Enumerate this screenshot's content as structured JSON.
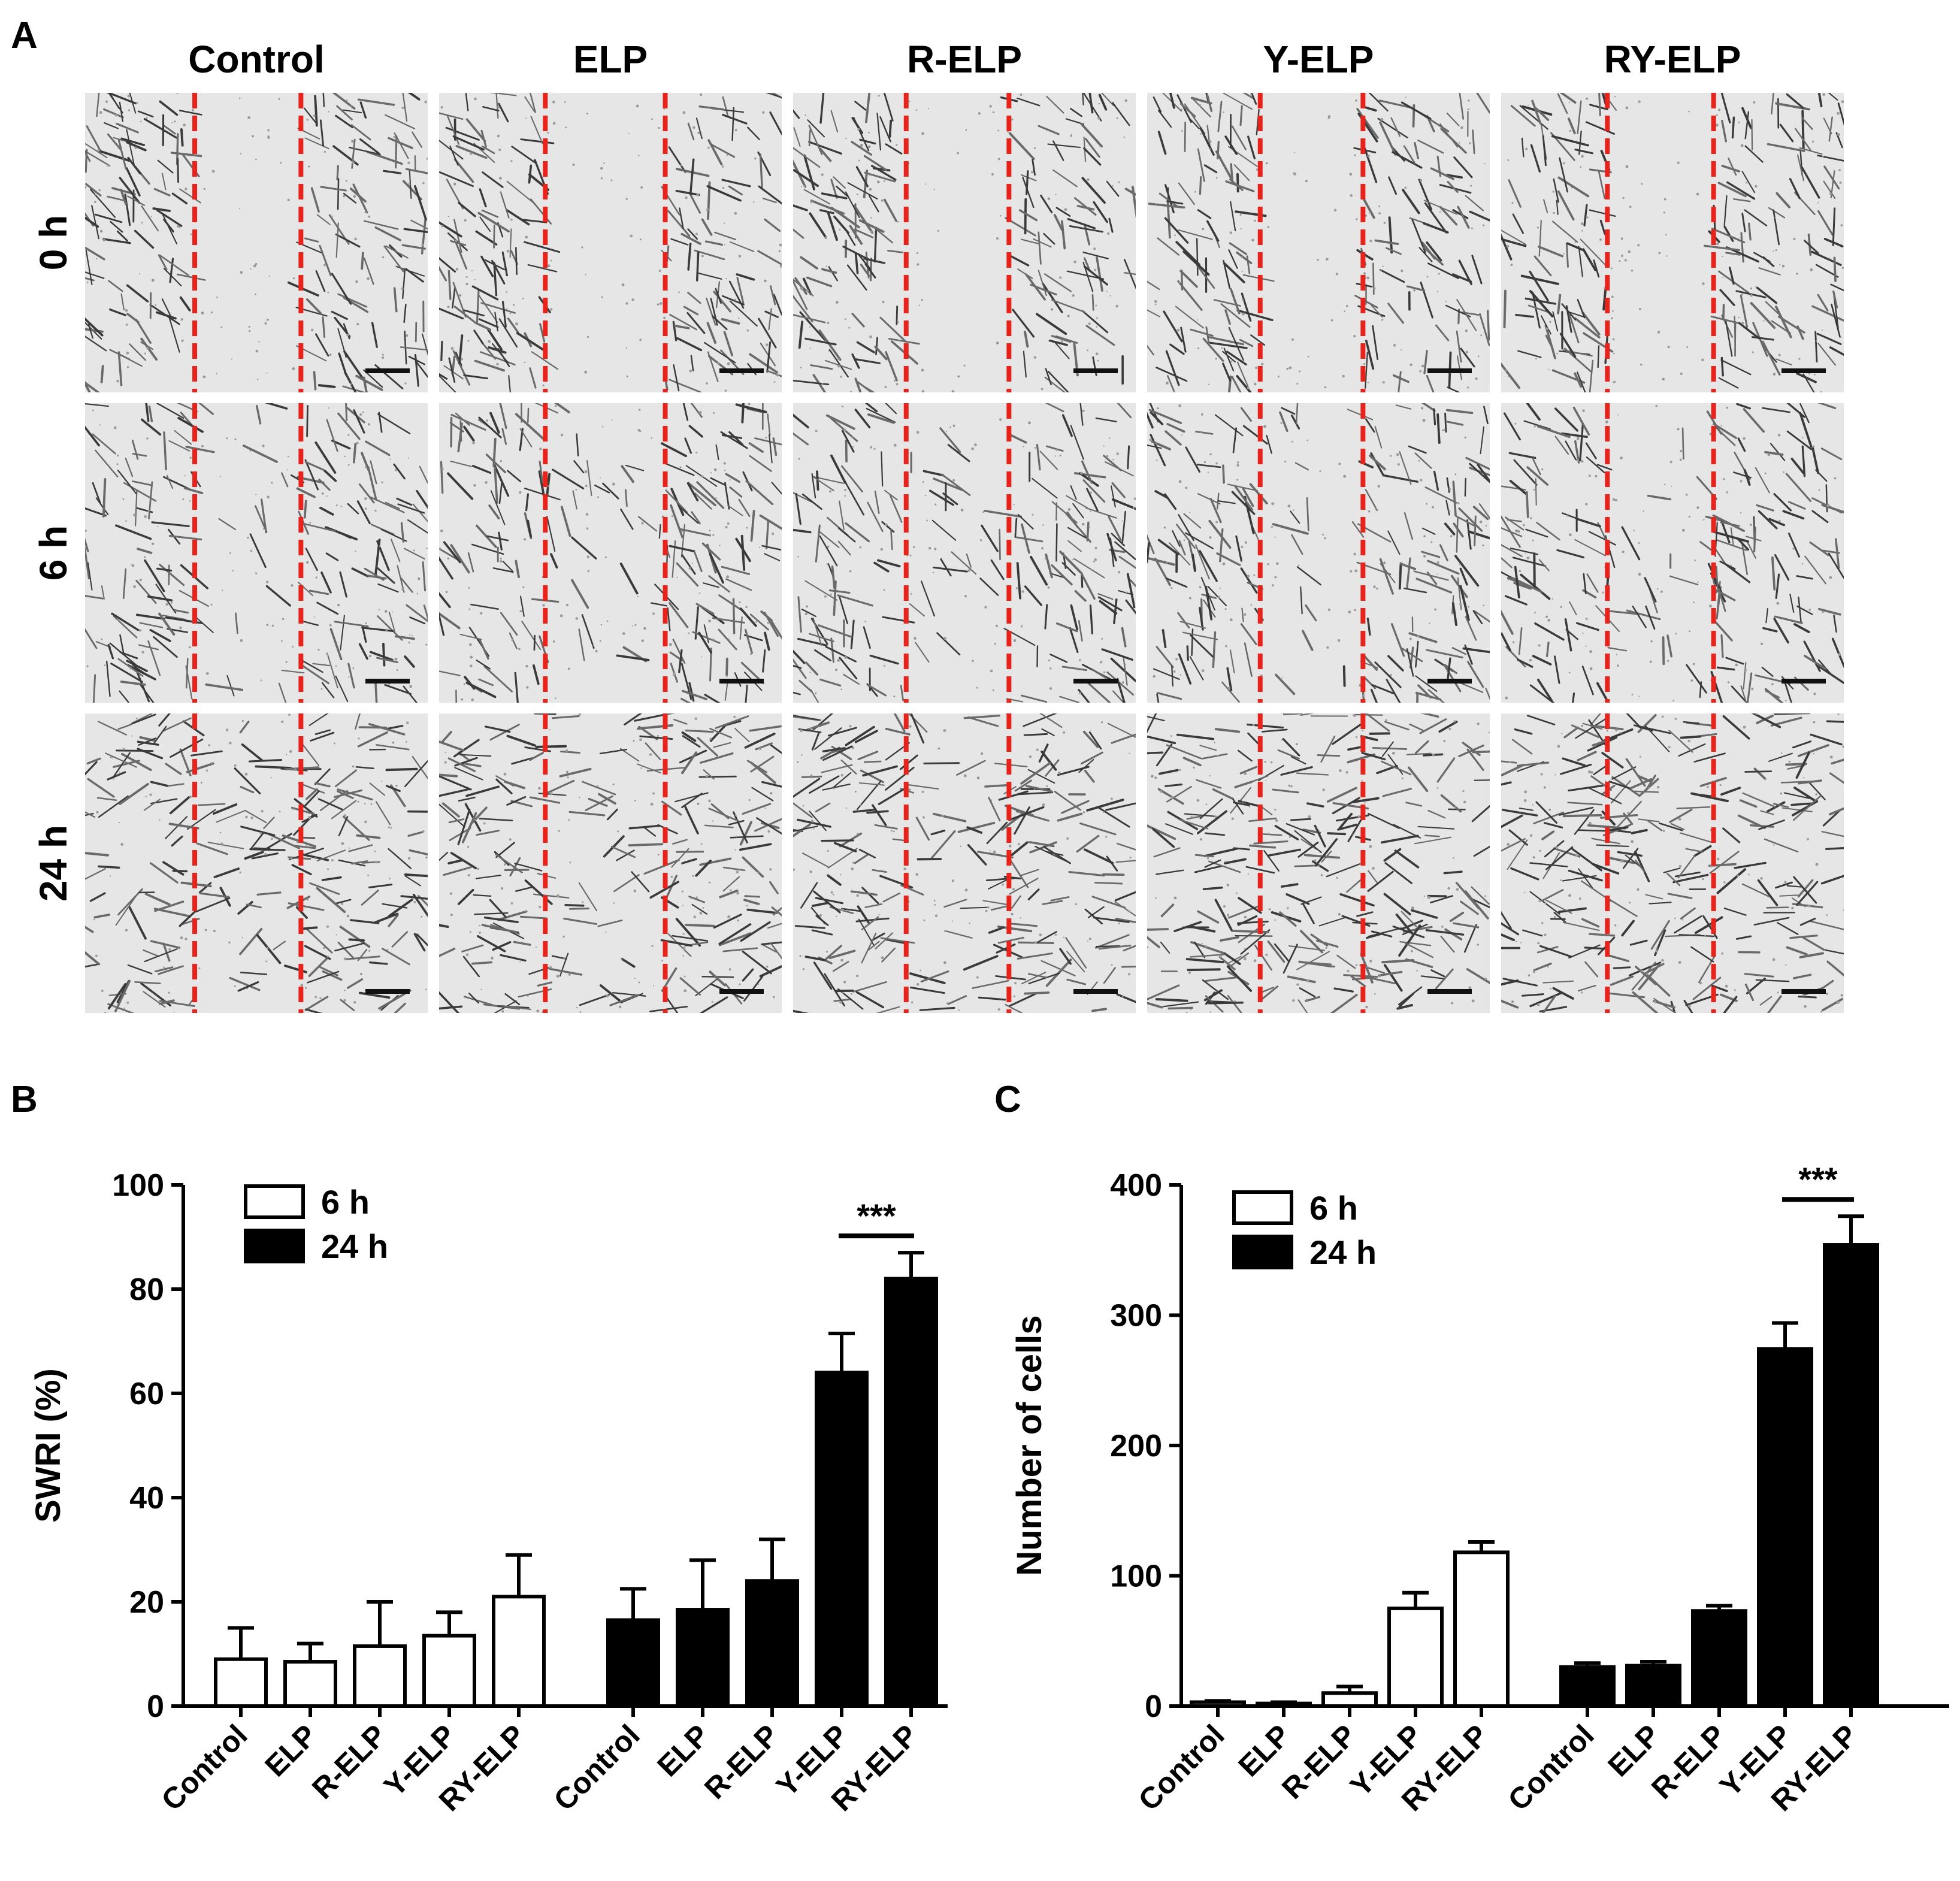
{
  "panel_a": {
    "label": "A",
    "columns": [
      "Control",
      "ELP",
      "R-ELP",
      "Y-ELP",
      "RY-ELP"
    ],
    "rows": [
      "0 h",
      "6 h",
      "24 h"
    ],
    "marker_color": "#e8231b"
  },
  "chart_data": [
    {
      "panel": "B",
      "type": "bar",
      "categories": [
        "Control",
        "ELP",
        "R-ELP",
        "Y-ELP",
        "RY-ELP"
      ],
      "series": [
        {
          "name": "6 h",
          "values": [
            9,
            8.5,
            11.5,
            13.5,
            21
          ],
          "errors": [
            6,
            3.5,
            8.5,
            4.5,
            8
          ],
          "fill": "#ffffff"
        },
        {
          "name": "24 h",
          "values": [
            16.5,
            18.5,
            24,
            64,
            82
          ],
          "errors": [
            6,
            9.5,
            8,
            7.5,
            5
          ],
          "fill": "#000000"
        }
      ],
      "title": "",
      "xlabel": "",
      "ylabel": "SWRI (%)",
      "ylim": [
        0,
        100
      ],
      "yticks": [
        0,
        20,
        40,
        60,
        80,
        100
      ],
      "grid": false,
      "legend": "top-left",
      "significance": {
        "label": "***",
        "series": "24 h",
        "between": [
          "Y-ELP",
          "RY-ELP"
        ]
      }
    },
    {
      "panel": "C",
      "type": "bar",
      "categories": [
        "Control",
        "ELP",
        "R-ELP",
        "Y-ELP",
        "RY-ELP"
      ],
      "series": [
        {
          "name": "6 h",
          "values": [
            3,
            2,
            10,
            75,
            118
          ],
          "errors": [
            1,
            1,
            5,
            12,
            8
          ],
          "fill": "#ffffff"
        },
        {
          "name": "24 h",
          "values": [
            30,
            31,
            73,
            274,
            354
          ],
          "errors": [
            3,
            3,
            4,
            20,
            22
          ],
          "fill": "#000000"
        }
      ],
      "title": "",
      "xlabel": "",
      "ylabel": "Number of cells",
      "ylim": [
        0,
        400
      ],
      "yticks": [
        0,
        100,
        200,
        300,
        400
      ],
      "grid": false,
      "legend": "top-left",
      "significance": {
        "label": "***",
        "series": "24 h",
        "between": [
          "Y-ELP",
          "RY-ELP"
        ]
      }
    }
  ]
}
